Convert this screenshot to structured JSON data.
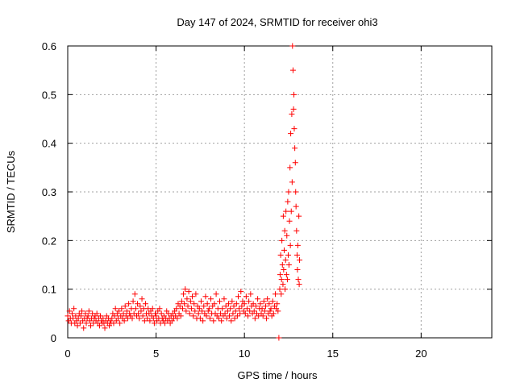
{
  "chart_data": {
    "type": "scatter",
    "title": "Day 147 of 2024, SRMTID for receiver ohi3",
    "xlabel": "GPS time / hours",
    "ylabel": "SRMTID / TECUs",
    "xlim": [
      0,
      24
    ],
    "ylim": [
      0,
      0.6
    ],
    "xticks": [
      0,
      5,
      10,
      15,
      20
    ],
    "yticks": [
      0,
      0.1,
      0.2,
      0.3,
      0.4,
      0.5,
      0.6
    ],
    "xtick_labels": [
      "0",
      "5",
      "10",
      "15",
      "20"
    ],
    "ytick_labels": [
      "0",
      "0.1",
      "0.2",
      "0.3",
      "0.4",
      "0.5",
      "0.6"
    ],
    "grid": true,
    "marker": "+",
    "series": [
      {
        "name": "ohi3",
        "color": "#ff0000",
        "points": [
          [
            0.0,
            0.045
          ],
          [
            0.05,
            0.035
          ],
          [
            0.1,
            0.055
          ],
          [
            0.15,
            0.04
          ],
          [
            0.2,
            0.03
          ],
          [
            0.25,
            0.05
          ],
          [
            0.3,
            0.04
          ],
          [
            0.35,
            0.06
          ],
          [
            0.4,
            0.03
          ],
          [
            0.45,
            0.045
          ],
          [
            0.5,
            0.035
          ],
          [
            0.55,
            0.025
          ],
          [
            0.6,
            0.04
          ],
          [
            0.65,
            0.05
          ],
          [
            0.7,
            0.03
          ],
          [
            0.75,
            0.045
          ],
          [
            0.8,
            0.055
          ],
          [
            0.85,
            0.035
          ],
          [
            0.9,
            0.02
          ],
          [
            0.95,
            0.04
          ],
          [
            1.0,
            0.05
          ],
          [
            1.05,
            0.03
          ],
          [
            1.1,
            0.04
          ],
          [
            1.15,
            0.045
          ],
          [
            1.2,
            0.055
          ],
          [
            1.25,
            0.035
          ],
          [
            1.3,
            0.025
          ],
          [
            1.35,
            0.04
          ],
          [
            1.4,
            0.05
          ],
          [
            1.45,
            0.03
          ],
          [
            1.5,
            0.04
          ],
          [
            1.55,
            0.045
          ],
          [
            1.6,
            0.035
          ],
          [
            1.65,
            0.05
          ],
          [
            1.7,
            0.03
          ],
          [
            1.75,
            0.04
          ],
          [
            1.8,
            0.025
          ],
          [
            1.85,
            0.045
          ],
          [
            1.9,
            0.035
          ],
          [
            1.95,
            0.03
          ],
          [
            2.0,
            0.04
          ],
          [
            2.05,
            0.03
          ],
          [
            2.1,
            0.02
          ],
          [
            2.15,
            0.035
          ],
          [
            2.2,
            0.045
          ],
          [
            2.25,
            0.03
          ],
          [
            2.3,
            0.04
          ],
          [
            2.35,
            0.025
          ],
          [
            2.4,
            0.035
          ],
          [
            2.45,
            0.03
          ],
          [
            2.5,
            0.04
          ],
          [
            2.55,
            0.05
          ],
          [
            2.6,
            0.03
          ],
          [
            2.65,
            0.045
          ],
          [
            2.7,
            0.06
          ],
          [
            2.75,
            0.035
          ],
          [
            2.8,
            0.05
          ],
          [
            2.85,
            0.04
          ],
          [
            2.9,
            0.055
          ],
          [
            2.95,
            0.03
          ],
          [
            3.0,
            0.045
          ],
          [
            3.05,
            0.06
          ],
          [
            3.1,
            0.04
          ],
          [
            3.15,
            0.05
          ],
          [
            3.2,
            0.035
          ],
          [
            3.25,
            0.065
          ],
          [
            3.3,
            0.045
          ],
          [
            3.35,
            0.055
          ],
          [
            3.4,
            0.04
          ],
          [
            3.45,
            0.07
          ],
          [
            3.5,
            0.05
          ],
          [
            3.55,
            0.045
          ],
          [
            3.6,
            0.06
          ],
          [
            3.65,
            0.04
          ],
          [
            3.7,
            0.075
          ],
          [
            3.75,
            0.05
          ],
          [
            3.8,
            0.09
          ],
          [
            3.85,
            0.06
          ],
          [
            3.9,
            0.045
          ],
          [
            3.95,
            0.07
          ],
          [
            4.0,
            0.05
          ],
          [
            4.05,
            0.04
          ],
          [
            4.1,
            0.065
          ],
          [
            4.15,
            0.055
          ],
          [
            4.2,
            0.08
          ],
          [
            4.25,
            0.045
          ],
          [
            4.3,
            0.06
          ],
          [
            4.35,
            0.035
          ],
          [
            4.4,
            0.07
          ],
          [
            4.45,
            0.05
          ],
          [
            4.5,
            0.04
          ],
          [
            4.55,
            0.06
          ],
          [
            4.6,
            0.05
          ],
          [
            4.65,
            0.035
          ],
          [
            4.7,
            0.055
          ],
          [
            4.75,
            0.045
          ],
          [
            4.8,
            0.06
          ],
          [
            4.85,
            0.04
          ],
          [
            4.9,
            0.03
          ],
          [
            4.95,
            0.05
          ],
          [
            5.0,
            0.045
          ],
          [
            5.05,
            0.035
          ],
          [
            5.1,
            0.055
          ],
          [
            5.15,
            0.04
          ],
          [
            5.2,
            0.06
          ],
          [
            5.25,
            0.03
          ],
          [
            5.3,
            0.05
          ],
          [
            5.35,
            0.04
          ],
          [
            5.4,
            0.035
          ],
          [
            5.45,
            0.045
          ],
          [
            5.5,
            0.03
          ],
          [
            5.55,
            0.04
          ],
          [
            5.6,
            0.055
          ],
          [
            5.65,
            0.035
          ],
          [
            5.7,
            0.05
          ],
          [
            5.75,
            0.04
          ],
          [
            5.8,
            0.03
          ],
          [
            5.85,
            0.045
          ],
          [
            5.9,
            0.035
          ],
          [
            5.95,
            0.05
          ],
          [
            6.0,
            0.04
          ],
          [
            6.05,
            0.055
          ],
          [
            6.1,
            0.045
          ],
          [
            6.15,
            0.06
          ],
          [
            6.2,
            0.04
          ],
          [
            6.25,
            0.07
          ],
          [
            6.3,
            0.05
          ],
          [
            6.35,
            0.065
          ],
          [
            6.4,
            0.045
          ],
          [
            6.45,
            0.075
          ],
          [
            6.5,
            0.06
          ],
          [
            6.55,
            0.09
          ],
          [
            6.6,
            0.07
          ],
          [
            6.65,
            0.1
          ],
          [
            6.7,
            0.055
          ],
          [
            6.75,
            0.08
          ],
          [
            6.8,
            0.065
          ],
          [
            6.85,
            0.095
          ],
          [
            6.9,
            0.05
          ],
          [
            6.95,
            0.075
          ],
          [
            7.0,
            0.06
          ],
          [
            7.05,
            0.085
          ],
          [
            7.1,
            0.045
          ],
          [
            7.15,
            0.07
          ],
          [
            7.2,
            0.055
          ],
          [
            7.25,
            0.09
          ],
          [
            7.3,
            0.04
          ],
          [
            7.35,
            0.065
          ],
          [
            7.4,
            0.05
          ],
          [
            7.45,
            0.06
          ],
          [
            7.5,
            0.04
          ],
          [
            7.55,
            0.075
          ],
          [
            7.6,
            0.055
          ],
          [
            7.65,
            0.035
          ],
          [
            7.7,
            0.065
          ],
          [
            7.75,
            0.05
          ],
          [
            7.8,
            0.085
          ],
          [
            7.85,
            0.045
          ],
          [
            7.9,
            0.07
          ],
          [
            7.95,
            0.055
          ],
          [
            8.0,
            0.06
          ],
          [
            8.05,
            0.04
          ],
          [
            8.1,
            0.08
          ],
          [
            8.15,
            0.05
          ],
          [
            8.2,
            0.065
          ],
          [
            8.25,
            0.035
          ],
          [
            8.3,
            0.07
          ],
          [
            8.35,
            0.05
          ],
          [
            8.4,
            0.09
          ],
          [
            8.45,
            0.045
          ],
          [
            8.5,
            0.06
          ],
          [
            8.55,
            0.04
          ],
          [
            8.6,
            0.075
          ],
          [
            8.65,
            0.05
          ],
          [
            8.7,
            0.035
          ],
          [
            8.75,
            0.06
          ],
          [
            8.8,
            0.045
          ],
          [
            8.85,
            0.08
          ],
          [
            8.9,
            0.05
          ],
          [
            8.95,
            0.065
          ],
          [
            9.0,
            0.04
          ],
          [
            9.05,
            0.055
          ],
          [
            9.1,
            0.07
          ],
          [
            9.15,
            0.045
          ],
          [
            9.2,
            0.06
          ],
          [
            9.25,
            0.035
          ],
          [
            9.3,
            0.075
          ],
          [
            9.35,
            0.05
          ],
          [
            9.4,
            0.065
          ],
          [
            9.45,
            0.04
          ],
          [
            9.5,
            0.055
          ],
          [
            9.55,
            0.07
          ],
          [
            9.6,
            0.045
          ],
          [
            9.65,
            0.085
          ],
          [
            9.7,
            0.06
          ],
          [
            9.75,
            0.05
          ],
          [
            9.8,
            0.095
          ],
          [
            9.85,
            0.065
          ],
          [
            9.9,
            0.075
          ],
          [
            9.95,
            0.055
          ],
          [
            10.0,
            0.07
          ],
          [
            10.05,
            0.05
          ],
          [
            10.1,
            0.085
          ],
          [
            10.15,
            0.06
          ],
          [
            10.2,
            0.045
          ],
          [
            10.25,
            0.075
          ],
          [
            10.3,
            0.055
          ],
          [
            10.35,
            0.09
          ],
          [
            10.4,
            0.065
          ],
          [
            10.45,
            0.05
          ],
          [
            10.5,
            0.07
          ],
          [
            10.55,
            0.055
          ],
          [
            10.6,
            0.04
          ],
          [
            10.65,
            0.065
          ],
          [
            10.7,
            0.05
          ],
          [
            10.75,
            0.08
          ],
          [
            10.8,
            0.045
          ],
          [
            10.85,
            0.06
          ],
          [
            10.9,
            0.07
          ],
          [
            10.95,
            0.05
          ],
          [
            11.0,
            0.06
          ],
          [
            11.05,
            0.045
          ],
          [
            11.1,
            0.075
          ],
          [
            11.15,
            0.055
          ],
          [
            11.2,
            0.065
          ],
          [
            11.25,
            0.04
          ],
          [
            11.3,
            0.08
          ],
          [
            11.35,
            0.05
          ],
          [
            11.4,
            0.07
          ],
          [
            11.45,
            0.055
          ],
          [
            11.5,
            0.06
          ],
          [
            11.55,
            0.045
          ],
          [
            11.6,
            0.075
          ],
          [
            11.65,
            0.05
          ],
          [
            11.7,
            0.065
          ],
          [
            11.75,
            0.09
          ],
          [
            11.8,
            0.06
          ],
          [
            11.85,
            0.07
          ],
          [
            11.9,
            0.055
          ],
          [
            11.95,
            0.0
          ],
          [
            12.0,
            0.1
          ],
          [
            12.02,
            0.13
          ],
          [
            12.05,
            0.17
          ],
          [
            12.08,
            0.09
          ],
          [
            12.1,
            0.12
          ],
          [
            12.12,
            0.2
          ],
          [
            12.15,
            0.15
          ],
          [
            12.18,
            0.11
          ],
          [
            12.2,
            0.25
          ],
          [
            12.22,
            0.14
          ],
          [
            12.25,
            0.18
          ],
          [
            12.28,
            0.22
          ],
          [
            12.3,
            0.1
          ],
          [
            12.33,
            0.16
          ],
          [
            12.35,
            0.26
          ],
          [
            12.38,
            0.13
          ],
          [
            12.4,
            0.21
          ],
          [
            12.43,
            0.12
          ],
          [
            12.45,
            0.28
          ],
          [
            12.48,
            0.17
          ],
          [
            12.5,
            0.3
          ],
          [
            12.52,
            0.15
          ],
          [
            12.55,
            0.24
          ],
          [
            12.58,
            0.35
          ],
          [
            12.6,
            0.19
          ],
          [
            12.62,
            0.42
          ],
          [
            12.65,
            0.26
          ],
          [
            12.68,
            0.46
          ],
          [
            12.7,
            0.32
          ],
          [
            12.72,
            0.6
          ],
          [
            12.75,
            0.55
          ],
          [
            12.78,
            0.47
          ],
          [
            12.8,
            0.5
          ],
          [
            12.82,
            0.43
          ],
          [
            12.85,
            0.39
          ],
          [
            12.88,
            0.36
          ],
          [
            12.9,
            0.3
          ],
          [
            12.92,
            0.27
          ],
          [
            12.95,
            0.22
          ],
          [
            12.98,
            0.17
          ],
          [
            13.0,
            0.14
          ],
          [
            13.02,
            0.19
          ],
          [
            13.05,
            0.12
          ],
          [
            13.08,
            0.25
          ],
          [
            13.1,
            0.11
          ],
          [
            13.12,
            0.16
          ]
        ]
      }
    ]
  }
}
